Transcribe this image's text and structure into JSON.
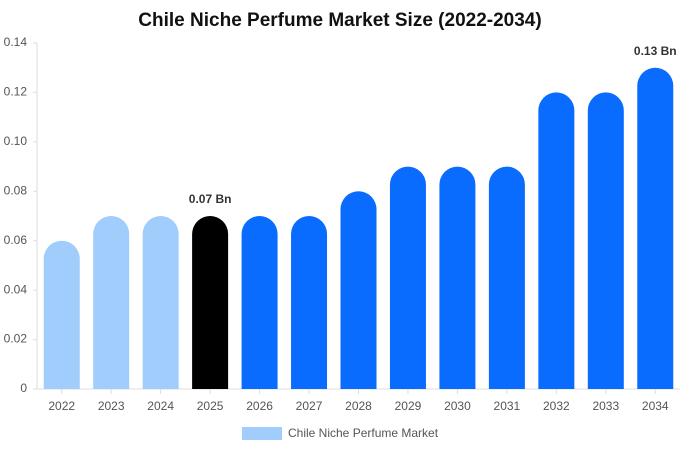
{
  "chart_data": {
    "type": "bar",
    "title": "Chile Niche Perfume Market Size (2022-2034)",
    "categories": [
      "2022",
      "2023",
      "2024",
      "2025",
      "2026",
      "2027",
      "2028",
      "2029",
      "2030",
      "2031",
      "2032",
      "2033",
      "2034"
    ],
    "series": [
      {
        "name": "Chile Niche Perfume Market",
        "color": "#a0cdfb",
        "values": [
          0.06,
          0.07,
          0.07,
          0.07,
          0.07,
          0.07,
          0.08,
          0.09,
          0.09,
          0.09,
          0.12,
          0.12,
          0.13
        ],
        "colors": [
          "#a0cdfb",
          "#a0cdfb",
          "#a0cdfb",
          "#000000",
          "#0a6cff",
          "#0a6cff",
          "#0a6cff",
          "#0a6cff",
          "#0a6cff",
          "#0a6cff",
          "#0a6cff",
          "#0a6cff",
          "#0a6cff"
        ],
        "value_labels": [
          null,
          null,
          null,
          "0.07 Bn",
          null,
          null,
          null,
          null,
          null,
          null,
          null,
          null,
          "0.13 Bn"
        ]
      }
    ],
    "ylim": [
      0,
      0.14
    ],
    "yticks": [
      0,
      0.02,
      0.04,
      0.06,
      0.08,
      {
        "value": 0.1,
        "label": "0.10"
      },
      0.12,
      0.14
    ],
    "grid": false
  }
}
